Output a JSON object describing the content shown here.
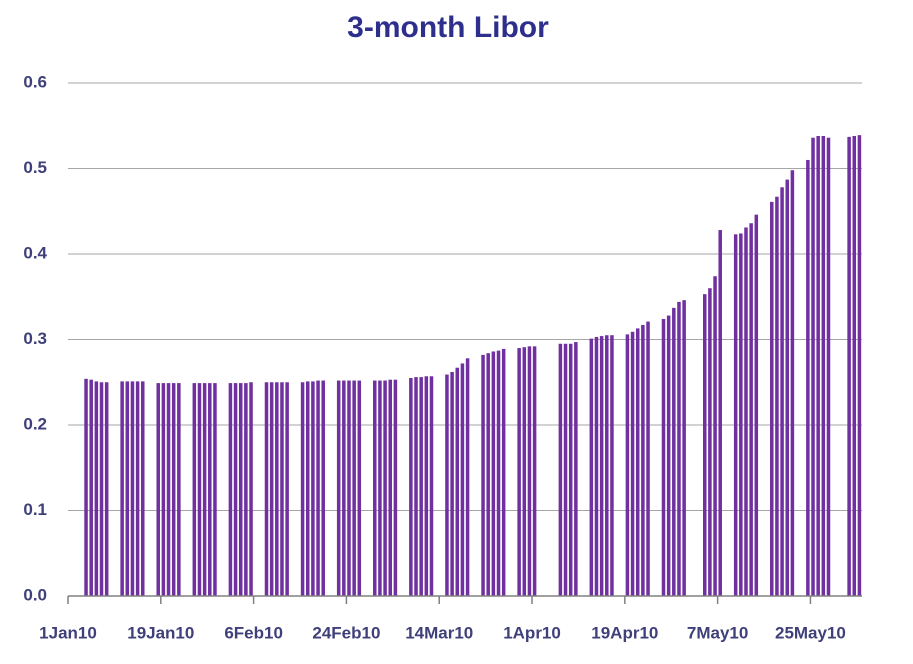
{
  "chart_data": {
    "type": "bar",
    "title": "3-month Libor",
    "color": "#7030a0",
    "grid": true,
    "x": [
      "2010-01-04",
      "2010-01-05",
      "2010-01-06",
      "2010-01-07",
      "2010-01-08",
      "2010-01-11",
      "2010-01-12",
      "2010-01-13",
      "2010-01-14",
      "2010-01-15",
      "2010-01-18",
      "2010-01-19",
      "2010-01-20",
      "2010-01-21",
      "2010-01-22",
      "2010-01-25",
      "2010-01-26",
      "2010-01-27",
      "2010-01-28",
      "2010-01-29",
      "2010-02-01",
      "2010-02-02",
      "2010-02-03",
      "2010-02-04",
      "2010-02-05",
      "2010-02-08",
      "2010-02-09",
      "2010-02-10",
      "2010-02-11",
      "2010-02-12",
      "2010-02-15",
      "2010-02-16",
      "2010-02-17",
      "2010-02-18",
      "2010-02-19",
      "2010-02-22",
      "2010-02-23",
      "2010-02-24",
      "2010-02-25",
      "2010-02-26",
      "2010-03-01",
      "2010-03-02",
      "2010-03-03",
      "2010-03-04",
      "2010-03-05",
      "2010-03-08",
      "2010-03-09",
      "2010-03-10",
      "2010-03-11",
      "2010-03-12",
      "2010-03-15",
      "2010-03-16",
      "2010-03-17",
      "2010-03-18",
      "2010-03-19",
      "2010-03-22",
      "2010-03-23",
      "2010-03-24",
      "2010-03-25",
      "2010-03-26",
      "2010-03-29",
      "2010-03-30",
      "2010-03-31",
      "2010-04-01",
      "2010-04-06",
      "2010-04-07",
      "2010-04-08",
      "2010-04-09",
      "2010-04-12",
      "2010-04-13",
      "2010-04-14",
      "2010-04-15",
      "2010-04-16",
      "2010-04-19",
      "2010-04-20",
      "2010-04-21",
      "2010-04-22",
      "2010-04-23",
      "2010-04-26",
      "2010-04-27",
      "2010-04-28",
      "2010-04-29",
      "2010-04-30",
      "2010-05-04",
      "2010-05-05",
      "2010-05-06",
      "2010-05-07",
      "2010-05-10",
      "2010-05-11",
      "2010-05-12",
      "2010-05-13",
      "2010-05-14",
      "2010-05-17",
      "2010-05-18",
      "2010-05-19",
      "2010-05-20",
      "2010-05-21",
      "2010-05-24",
      "2010-05-25",
      "2010-05-26",
      "2010-05-27",
      "2010-05-28",
      "2010-06-01",
      "2010-06-02",
      "2010-06-03"
    ],
    "values": [
      0.254,
      0.253,
      0.251,
      0.25,
      0.25,
      0.251,
      0.251,
      0.251,
      0.251,
      0.251,
      0.249,
      0.249,
      0.249,
      0.249,
      0.249,
      0.249,
      0.249,
      0.249,
      0.249,
      0.249,
      0.249,
      0.249,
      0.249,
      0.249,
      0.25,
      0.25,
      0.25,
      0.25,
      0.25,
      0.25,
      0.25,
      0.251,
      0.251,
      0.252,
      0.252,
      0.252,
      0.252,
      0.252,
      0.252,
      0.252,
      0.252,
      0.252,
      0.252,
      0.253,
      0.253,
      0.255,
      0.256,
      0.256,
      0.257,
      0.257,
      0.259,
      0.262,
      0.267,
      0.272,
      0.278,
      0.282,
      0.284,
      0.286,
      0.287,
      0.289,
      0.29,
      0.291,
      0.292,
      0.292,
      0.295,
      0.295,
      0.295,
      0.297,
      0.301,
      0.303,
      0.304,
      0.305,
      0.305,
      0.306,
      0.309,
      0.313,
      0.317,
      0.321,
      0.324,
      0.328,
      0.337,
      0.344,
      0.346,
      0.353,
      0.36,
      0.374,
      0.428,
      0.423,
      0.424,
      0.431,
      0.436,
      0.446,
      0.461,
      0.467,
      0.478,
      0.487,
      0.498,
      0.51,
      0.536,
      0.538,
      0.538,
      0.536,
      0.537,
      0.538,
      0.539
    ],
    "xlim": [
      "2010-01-01",
      "2010-06-04"
    ],
    "xticks": [
      {
        "value": "2010-01-01",
        "label": "1Jan10"
      },
      {
        "value": "2010-01-19",
        "label": "19Jan10"
      },
      {
        "value": "2010-02-06",
        "label": "6Feb10"
      },
      {
        "value": "2010-02-24",
        "label": "24Feb10"
      },
      {
        "value": "2010-03-14",
        "label": "14Mar10"
      },
      {
        "value": "2010-04-01",
        "label": "1Apr10"
      },
      {
        "value": "2010-04-19",
        "label": "19Apr10"
      },
      {
        "value": "2010-05-07",
        "label": "7May10"
      },
      {
        "value": "2010-05-25",
        "label": "25May10"
      }
    ],
    "ylim": [
      0,
      0.6
    ],
    "yticks": [
      {
        "value": 0,
        "label": "0.0"
      },
      0.1,
      0.2,
      0.3,
      0.4,
      0.5,
      0.6
    ]
  }
}
